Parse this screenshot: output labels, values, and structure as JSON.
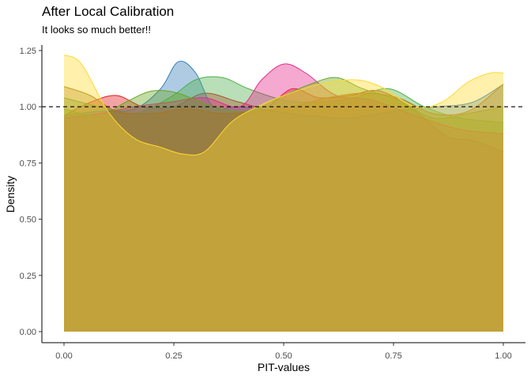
{
  "chart_data": {
    "type": "area",
    "title": "After Local Calibration",
    "subtitle": "It looks so much better!!",
    "xlabel": "PIT-values",
    "ylabel": "Density",
    "xlim": [
      0,
      1
    ],
    "ylim": [
      0,
      1.25
    ],
    "x_ticks": [
      "0.00",
      "0.25",
      "0.50",
      "0.75",
      "1.00"
    ],
    "y_ticks": [
      "0.00",
      "0.25",
      "0.50",
      "0.75",
      "1.00",
      "1.25"
    ],
    "reference_line": {
      "y": 1.0,
      "style": "dashed"
    },
    "grid": false,
    "legend": "none",
    "series": [
      {
        "color": "#e41a1c",
        "x": [
          0,
          0.06,
          0.12,
          0.18,
          0.25,
          0.32,
          0.4,
          0.46,
          0.52,
          0.58,
          0.65,
          0.72,
          0.8,
          0.87,
          0.93,
          1
        ],
        "y": [
          0.96,
          1.02,
          1.05,
          1.0,
          1.0,
          1.06,
          1.02,
          1.0,
          1.08,
          1.04,
          1.05,
          1.07,
          0.98,
          0.87,
          0.85,
          0.8
        ]
      },
      {
        "color": "#377eb8",
        "x": [
          0,
          0.08,
          0.16,
          0.22,
          0.26,
          0.3,
          0.34,
          0.4,
          0.48,
          0.56,
          0.65,
          0.75,
          0.85,
          0.93,
          1
        ],
        "y": [
          0.96,
          0.98,
          0.99,
          1.08,
          1.2,
          1.15,
          1.0,
          1.0,
          0.98,
          0.96,
          0.95,
          0.98,
          1.0,
          1.02,
          1.1
        ]
      },
      {
        "color": "#4daf4a",
        "x": [
          0,
          0.08,
          0.16,
          0.24,
          0.3,
          0.36,
          0.42,
          0.5,
          0.58,
          0.66,
          0.74,
          0.82,
          0.9,
          1
        ],
        "y": [
          1.04,
          1.0,
          0.97,
          1.04,
          1.12,
          1.13,
          1.08,
          1.03,
          1.02,
          1.04,
          1.08,
          1.0,
          0.95,
          0.93
        ]
      },
      {
        "color": "#e7298a",
        "x": [
          0,
          0.08,
          0.16,
          0.24,
          0.32,
          0.4,
          0.45,
          0.5,
          0.55,
          0.62,
          0.7,
          0.8,
          0.9,
          1
        ],
        "y": [
          0.95,
          0.97,
          1.0,
          1.02,
          1.04,
          1.0,
          1.12,
          1.19,
          1.15,
          1.05,
          1.03,
          0.96,
          0.9,
          0.88
        ]
      },
      {
        "color": "#66a61e",
        "x": [
          0,
          0.08,
          0.14,
          0.2,
          0.26,
          0.34,
          0.42,
          0.5,
          0.56,
          0.62,
          0.68,
          0.76,
          0.84,
          0.92,
          1
        ],
        "y": [
          0.99,
          0.96,
          1.02,
          1.07,
          1.06,
          1.0,
          0.98,
          1.05,
          1.1,
          1.13,
          1.08,
          1.03,
          0.95,
          0.97,
          1.0
        ]
      },
      {
        "color": "#a6761d",
        "x": [
          0,
          0.06,
          0.12,
          0.2,
          0.28,
          0.36,
          0.44,
          0.52,
          0.6,
          0.68,
          0.76,
          0.84,
          0.92,
          1
        ],
        "y": [
          1.09,
          1.05,
          0.98,
          0.97,
          0.99,
          0.97,
          0.98,
          1.0,
          1.04,
          1.06,
          1.04,
          0.97,
          0.98,
          1.1
        ]
      },
      {
        "color": "#ffd92f",
        "x": [
          0,
          0.04,
          0.1,
          0.16,
          0.22,
          0.27,
          0.32,
          0.38,
          0.44,
          0.5,
          0.58,
          0.66,
          0.72,
          0.8,
          0.86,
          0.92,
          0.97,
          1
        ],
        "y": [
          1.23,
          1.19,
          0.98,
          0.86,
          0.82,
          0.79,
          0.8,
          0.93,
          1.0,
          1.05,
          1.1,
          1.12,
          1.09,
          1.0,
          1.02,
          1.11,
          1.15,
          1.15
        ]
      }
    ]
  }
}
